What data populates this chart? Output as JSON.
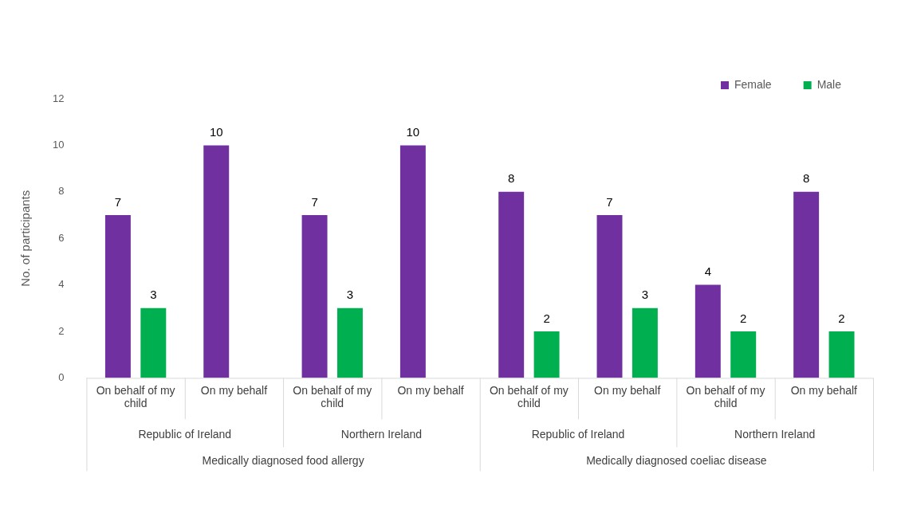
{
  "chart_data": {
    "type": "bar",
    "ylabel": "No. of participants",
    "categories": [
      "On behalf of my child",
      "On my behalf",
      "On behalf of my child",
      "On my behalf",
      "On behalf of my child",
      "On my behalf",
      "On behalf of my child",
      "On my behalf"
    ],
    "series": [
      {
        "name": "Female",
        "color": "#7030a0",
        "values": [
          7,
          10,
          7,
          10,
          8,
          7,
          4,
          8
        ]
      },
      {
        "name": "Male",
        "color": "#00b050",
        "values": [
          3,
          null,
          3,
          null,
          2,
          3,
          2,
          2
        ]
      }
    ],
    "ylim": [
      0,
      12
    ],
    "yticks": [
      0,
      2,
      4,
      6,
      8,
      10,
      12
    ],
    "grid": false,
    "legend": "top right",
    "data_labels": true,
    "annotations": [
      "Republic of Ireland",
      "Northern Ireland",
      "Republic of Ireland",
      "Northern Ireland",
      "Medically diagnosed food allergy",
      "Medically diagnosed coeliac disease"
    ]
  }
}
